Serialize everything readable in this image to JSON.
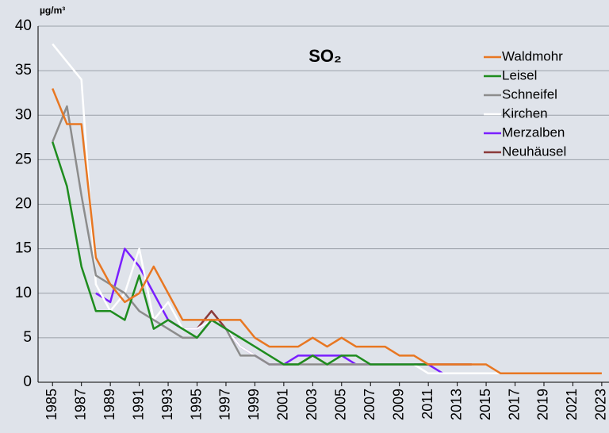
{
  "chart_data": {
    "type": "line",
    "title": "SO₂",
    "y_label": "µg/m³",
    "x": [
      1985,
      1986,
      1987,
      1988,
      1989,
      1990,
      1991,
      1992,
      1993,
      1994,
      1995,
      1996,
      1997,
      1998,
      1999,
      2000,
      2001,
      2002,
      2003,
      2004,
      2005,
      2006,
      2007,
      2008,
      2009,
      2010,
      2011,
      2012,
      2013,
      2014,
      2015,
      2016,
      2017,
      2018,
      2019,
      2020,
      2021,
      2022,
      2023
    ],
    "series": [
      {
        "name": "Waldmohr",
        "color": "#e87722",
        "values": [
          33,
          29,
          29,
          14,
          11,
          9,
          10,
          13,
          10,
          7,
          7,
          7,
          7,
          7,
          5,
          4,
          4,
          4,
          5,
          4,
          5,
          4,
          4,
          4,
          3,
          3,
          2,
          2,
          2,
          2,
          2,
          1,
          1,
          1,
          1,
          1,
          1,
          1,
          1
        ]
      },
      {
        "name": "Leisel",
        "color": "#1e8c1e",
        "values": [
          27,
          22,
          13,
          8,
          8,
          7,
          12,
          6,
          7,
          6,
          5,
          7,
          6,
          5,
          4,
          3,
          2,
          2,
          3,
          2,
          3,
          3,
          2,
          2,
          2,
          2,
          2,
          null,
          null,
          null,
          null,
          null,
          null,
          null,
          null,
          null,
          null,
          null,
          null
        ]
      },
      {
        "name": "Schneifel",
        "color": "#8c8c8c",
        "values": [
          27,
          31,
          21,
          12,
          11,
          10,
          8,
          7,
          6,
          5,
          5,
          7,
          6,
          3,
          3,
          2,
          2,
          2,
          2,
          2,
          2,
          2,
          2,
          2,
          2,
          2,
          2,
          null,
          null,
          null,
          null,
          null,
          null,
          null,
          null,
          null,
          null,
          null,
          null
        ]
      },
      {
        "name": "Kirchen",
        "color": "#ffffff",
        "values": [
          38,
          36,
          34,
          11,
          8,
          10,
          15,
          7,
          9,
          6,
          6,
          7,
          6,
          4,
          3,
          2,
          2,
          2,
          2,
          2,
          2,
          2,
          2,
          2,
          2,
          2,
          1,
          1,
          1,
          1,
          1,
          1,
          1,
          1,
          1,
          1,
          1,
          1,
          1
        ]
      },
      {
        "name": "Merzalben",
        "color": "#7a1fff",
        "values": [
          null,
          null,
          null,
          10,
          9,
          15,
          13,
          10,
          7,
          6,
          6,
          7,
          6,
          4,
          3,
          2,
          2,
          3,
          3,
          3,
          3,
          2,
          2,
          2,
          2,
          2,
          2,
          1,
          1,
          1,
          1,
          1,
          1,
          1,
          1,
          1,
          1,
          1,
          1
        ]
      },
      {
        "name": "Neuhäusel",
        "color": "#8b3a3a",
        "values": [
          null,
          null,
          null,
          null,
          null,
          null,
          null,
          null,
          7,
          6,
          6,
          8,
          6,
          4,
          3,
          2,
          2,
          2,
          3,
          2,
          2,
          2,
          2,
          2,
          2,
          2,
          2,
          2,
          2,
          2,
          null,
          null,
          null,
          null,
          null,
          null,
          null,
          null,
          null
        ]
      }
    ],
    "xlim": [
      1984,
      2023.5
    ],
    "xticks": [
      1985,
      1987,
      1989,
      1991,
      1993,
      1995,
      1997,
      1999,
      2001,
      2003,
      2005,
      2007,
      2009,
      2011,
      2013,
      2015,
      2017,
      2019,
      2021,
      2023
    ],
    "ylim": [
      0,
      40
    ],
    "yticks": [
      0,
      5,
      10,
      15,
      20,
      25,
      30,
      35,
      40
    ],
    "grid": true,
    "legend": "top-right"
  }
}
